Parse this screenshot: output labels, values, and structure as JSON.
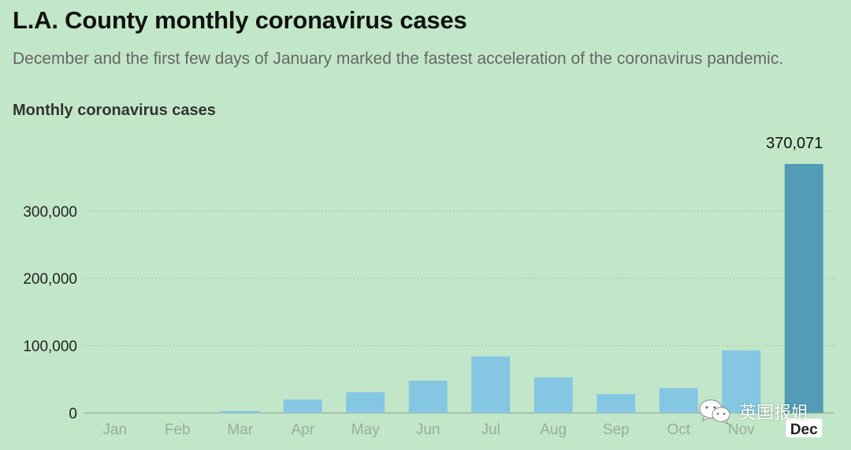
{
  "title": "L.A. County monthly coronavirus cases",
  "subtitle": "December and the first few days of January marked the fastest acceleration of the coronavirus pandemic.",
  "chart_label": "Monthly coronavirus cases",
  "watermark": "英国报姐",
  "colors": {
    "background": "#c2e7c8",
    "bar": "#85c6e3",
    "bar_highlight": "#529cb5",
    "gridline": "#9fb8a3",
    "baseline": "#9aab9d"
  },
  "chart_data": {
    "type": "bar",
    "title": "Monthly coronavirus cases",
    "categories": [
      "Jan",
      "Feb",
      "Mar",
      "Apr",
      "May",
      "Jun",
      "Jul",
      "Aug",
      "Sep",
      "Oct",
      "Nov",
      "Dec"
    ],
    "values": [
      0,
      0,
      3000,
      20000,
      31000,
      48000,
      84000,
      53000,
      28000,
      37000,
      93000,
      370071
    ],
    "highlight_index": 11,
    "data_labels": [
      {
        "index": 11,
        "text": "370,071"
      }
    ],
    "yticks": [
      0,
      100000,
      200000,
      300000
    ],
    "ytick_labels": [
      "0",
      "100,000",
      "200,000",
      "300,000"
    ],
    "ylim": [
      0,
      370071
    ],
    "grid": true,
    "xlabel": "",
    "ylabel": ""
  }
}
